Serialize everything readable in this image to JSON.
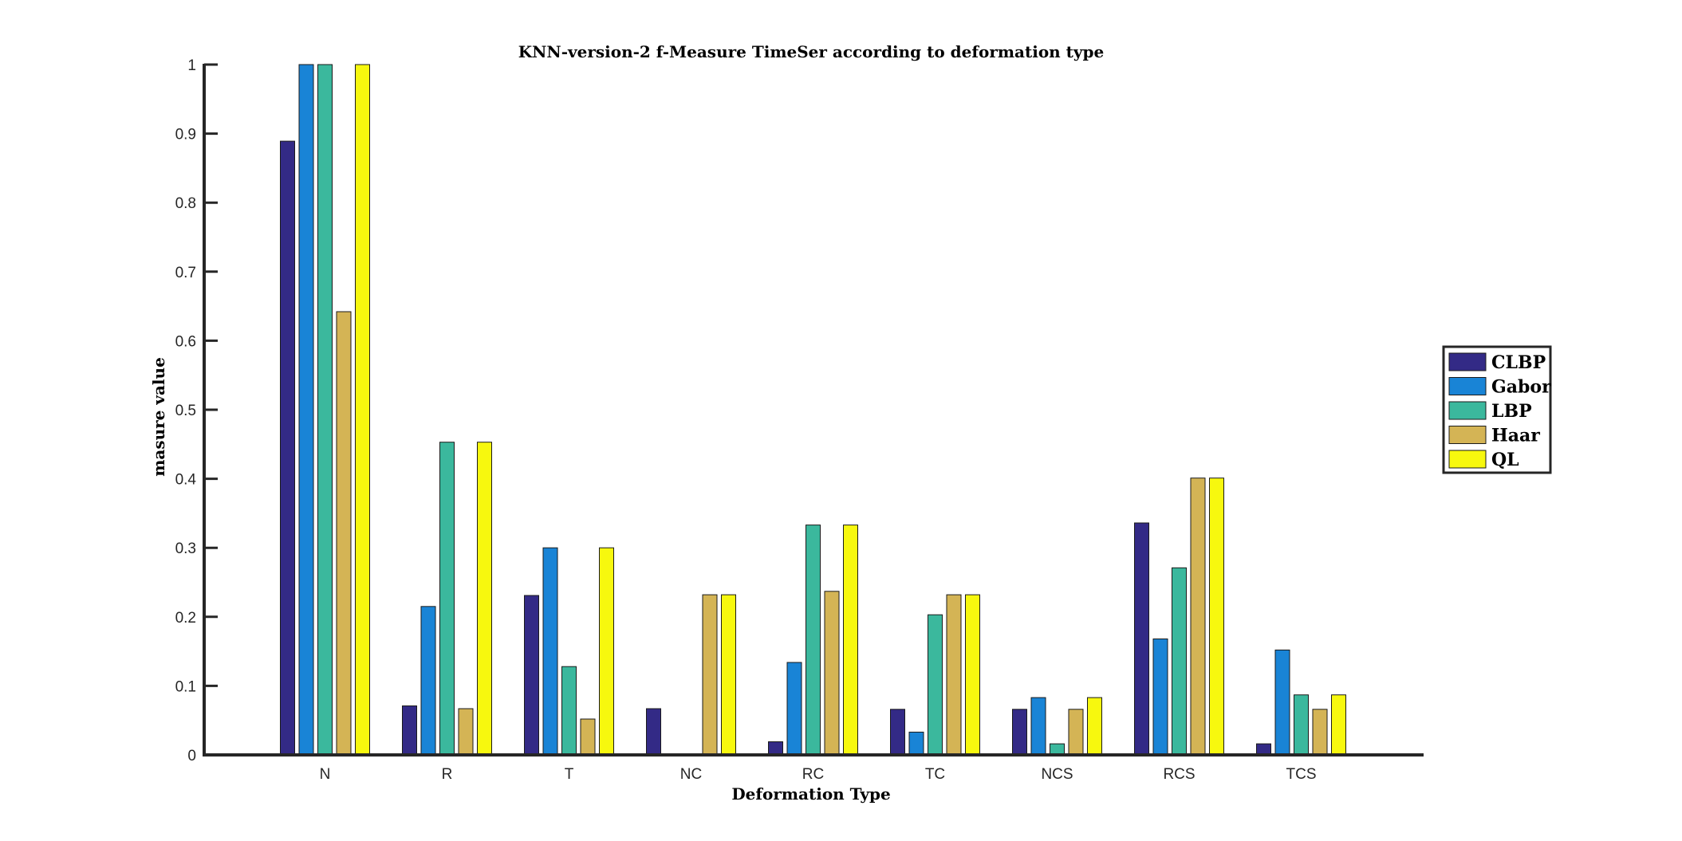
{
  "chart_data": {
    "type": "bar",
    "title": "KNN-version-2 f-Measure TimeSer according to deformation type",
    "xlabel": "Deformation Type",
    "ylabel": "masure value",
    "ylim": [
      0,
      1
    ],
    "yticks": [
      "0",
      "0.1",
      "0.2",
      "0.3",
      "0.4",
      "0.5",
      "0.6",
      "0.7",
      "0.8",
      "0.9",
      "1"
    ],
    "categories": [
      "N",
      "R",
      "T",
      "NC",
      "RC",
      "TC",
      "NCS",
      "RCS",
      "TCS"
    ],
    "series": [
      {
        "name": "CLBP",
        "color": "#332a86",
        "values": [
          0.889,
          0.071,
          0.231,
          0.067,
          0.019,
          0.066,
          0.066,
          0.336,
          0.016
        ]
      },
      {
        "name": "Gabor",
        "color": "#1984d6",
        "values": [
          1.0,
          0.215,
          0.3,
          0.0,
          0.134,
          0.033,
          0.083,
          0.168,
          0.152
        ]
      },
      {
        "name": "LBP",
        "color": "#3bb89d",
        "values": [
          1.0,
          0.453,
          0.128,
          0.0,
          0.333,
          0.203,
          0.016,
          0.271,
          0.087
        ]
      },
      {
        "name": "Haar",
        "color": "#d4b455",
        "values": [
          0.642,
          0.067,
          0.052,
          0.232,
          0.237,
          0.232,
          0.066,
          0.401,
          0.066
        ]
      },
      {
        "name": "QL",
        "color": "#f7f80e",
        "values": [
          1.0,
          0.453,
          0.3,
          0.232,
          0.333,
          0.232,
          0.083,
          0.401,
          0.087
        ]
      }
    ],
    "grid": false,
    "legend": "right"
  }
}
